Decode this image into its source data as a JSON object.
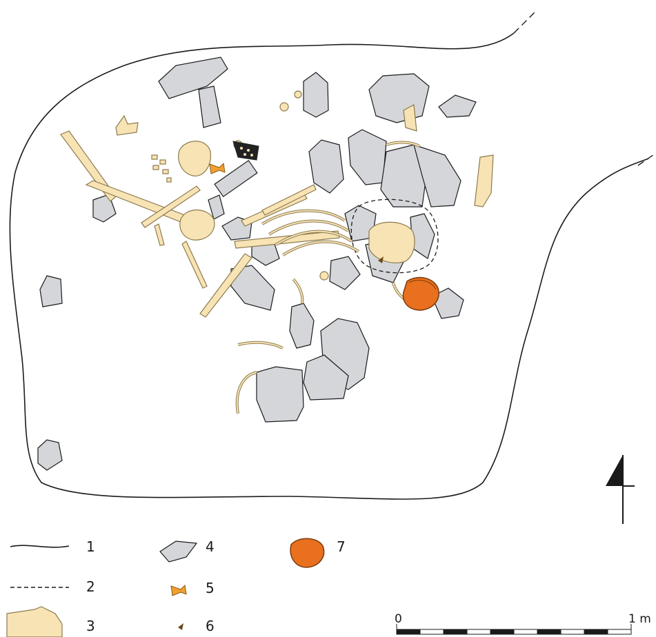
{
  "legend": {
    "items": [
      {
        "number": "1",
        "kind": "pit-outline"
      },
      {
        "number": "2",
        "kind": "dashed-outline"
      },
      {
        "number": "3",
        "kind": "human-bone"
      },
      {
        "number": "4",
        "kind": "stone"
      },
      {
        "number": "5",
        "kind": "animal-bone"
      },
      {
        "number": "6",
        "kind": "small-find"
      },
      {
        "number": "7",
        "kind": "pottery-vessel"
      }
    ]
  },
  "scale_bar": {
    "start_label": "0",
    "end_label": "1 m",
    "segments": 10
  },
  "colors": {
    "outline": "#1a1a1a",
    "stone_fill": "#d4d6da",
    "bone_fill": "#f7e3b4",
    "bone_stroke": "#8c7a4e",
    "vessel_fill": "#e8701e",
    "vessel_stroke": "#7a3a0a"
  },
  "north_arrow_icon": "north-arrow-icon"
}
